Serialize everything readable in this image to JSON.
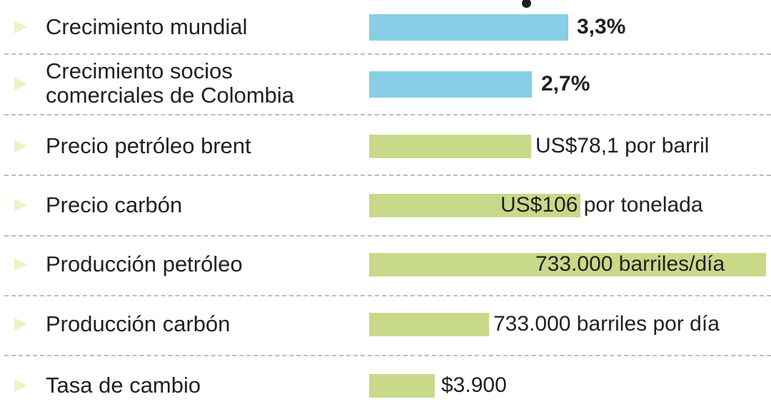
{
  "chart_data": {
    "type": "bar",
    "orientation": "horizontal",
    "categories": [
      "Crecimiento mundial",
      "Crecimiento socios\ncomerciales de Colombia",
      "Precio petróleo brent",
      "Precio carbón",
      "Producción petróleo",
      "Producción carbón",
      "Tasa de cambio"
    ],
    "values": [
      3.3,
      2.7,
      78.1,
      106,
      733000,
      733000,
      3900
    ],
    "value_labels": [
      "3,3%",
      "2,7%",
      "US$78,1 por barril",
      "US$106 por tonelada",
      "733.000 barriles/día",
      "733.000 barriles por día",
      "$3.900"
    ],
    "bar_colors": [
      "#87cee6",
      "#87cee6",
      "#c8d98a",
      "#c8d98a",
      "#c8d98a",
      "#c8d98a",
      "#c8d98a"
    ],
    "grid": false,
    "legend": "none"
  },
  "colors": {
    "growth_bar": "#87cee6",
    "commodity_bar": "#c8d98a",
    "arrow": "#eef2c4",
    "divider": "#bdbdbd",
    "text": "#231f20"
  },
  "icons": {
    "row_marker": "triangle-right-icon",
    "marker_dot": "dot-icon"
  }
}
